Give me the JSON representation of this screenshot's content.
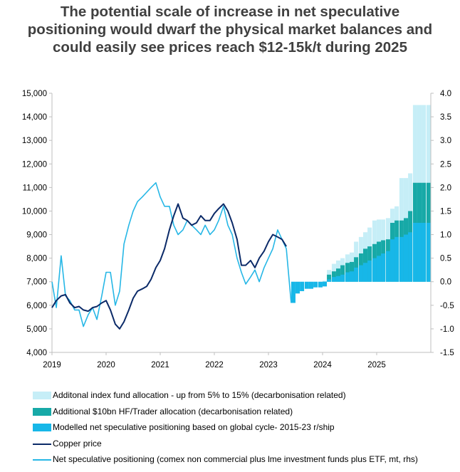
{
  "title_lines": [
    "The potential scale of increase in net speculative",
    "positioning would dwarf the physical market balances and",
    "could easily see prices reach $12-15k/t during 2025"
  ],
  "colors": {
    "index_fund": "#c6eef7",
    "hf_trader": "#17a9a7",
    "modelled": "#17b7e8",
    "copper_price": "#0b2a68",
    "net_spec": "#26b7e6",
    "axis": "#bfbfbf"
  },
  "chart_data": {
    "type": "line",
    "x_tick_labels": [
      "2019",
      "2020",
      "2021",
      "2022",
      "2023",
      "2024",
      "2025"
    ],
    "xlim": [
      2019.0,
      2026.0
    ],
    "y_left": {
      "ylim": [
        4000,
        15000
      ],
      "ticks": [
        4000,
        5000,
        6000,
        7000,
        8000,
        9000,
        10000,
        11000,
        12000,
        13000,
        14000,
        15000
      ],
      "tick_labels": [
        "4,000",
        "5,000",
        "6,000",
        "7,000",
        "8,000",
        "9,000",
        "10,000",
        "11,000",
        "12,000",
        "13,000",
        "14,000",
        "15,000"
      ]
    },
    "y_right": {
      "ylim": [
        -1.5,
        4.0
      ],
      "ticks": [
        -1.5,
        -1.0,
        -0.5,
        0.0,
        0.5,
        1.0,
        1.5,
        2.0,
        2.5,
        3.0,
        3.5,
        4.0
      ],
      "tick_labels": [
        "-1.5",
        "-1.0",
        "-0.5",
        "0.0",
        "0.5",
        "1.0",
        "1.5",
        "2.0",
        "2.5",
        "3.0",
        "3.5",
        "4.0"
      ]
    },
    "legend_placement": "bottom",
    "grid": false,
    "series": [
      {
        "name": "Additonal index fund allocation - up from 5% to 15% (decarbonisation related)",
        "kind": "bar",
        "axis": "right",
        "stack": "cumulative_top",
        "x": [
          2024.0,
          2024.08,
          2024.17,
          2024.25,
          2024.33,
          2024.42,
          2024.5,
          2024.58,
          2024.67,
          2024.75,
          2024.83,
          2024.92,
          2025.0,
          2025.08,
          2025.17,
          2025.25,
          2025.33,
          2025.42,
          2025.5,
          2025.58,
          2025.67,
          2025.75,
          2025.83,
          2025.92
        ],
        "values": [
          0.02,
          0.25,
          0.38,
          0.45,
          0.5,
          0.58,
          0.62,
          0.85,
          0.95,
          1.05,
          1.15,
          1.3,
          1.32,
          1.32,
          1.35,
          1.55,
          1.6,
          2.2,
          2.2,
          2.3,
          3.75,
          3.75,
          3.75,
          3.75
        ]
      },
      {
        "name": "Additional $10bn HF/Trader allocation (decarbonisation related)",
        "kind": "bar",
        "axis": "right",
        "stack": "cumulative_mid",
        "x": [
          2024.0,
          2024.08,
          2024.17,
          2024.25,
          2024.33,
          2024.42,
          2024.5,
          2024.58,
          2024.67,
          2024.75,
          2024.83,
          2024.92,
          2025.0,
          2025.08,
          2025.17,
          2025.25,
          2025.33,
          2025.42,
          2025.5,
          2025.58,
          2025.67,
          2025.75,
          2025.83,
          2025.92
        ],
        "values": [
          0.0,
          0.15,
          0.22,
          0.28,
          0.35,
          0.4,
          0.42,
          0.52,
          0.6,
          0.7,
          0.75,
          0.8,
          0.85,
          0.88,
          0.9,
          1.25,
          1.3,
          1.3,
          1.35,
          1.5,
          2.1,
          2.1,
          2.1,
          2.1
        ]
      },
      {
        "name": "Modelled net speculative positioning based on global cycle- 2015-23 r/ship",
        "kind": "bar",
        "axis": "right",
        "stack": "base",
        "x": [
          2023.42,
          2023.5,
          2023.58,
          2023.67,
          2023.75,
          2023.83,
          2023.92,
          2024.0,
          2024.08,
          2024.17,
          2024.25,
          2024.33,
          2024.42,
          2024.5,
          2024.58,
          2024.67,
          2024.75,
          2024.83,
          2024.92,
          2025.0,
          2025.08,
          2025.17,
          2025.25,
          2025.33,
          2025.42,
          2025.5,
          2025.58,
          2025.67,
          2025.75,
          2025.83,
          2025.92
        ],
        "values": [
          -0.45,
          -0.25,
          -0.2,
          -0.15,
          -0.15,
          -0.12,
          -0.12,
          -0.1,
          0.05,
          0.1,
          0.12,
          0.15,
          0.2,
          0.22,
          0.3,
          0.35,
          0.4,
          0.45,
          0.5,
          0.55,
          0.6,
          0.65,
          0.9,
          0.95,
          0.95,
          1.0,
          1.05,
          1.25,
          1.25,
          1.25,
          1.25
        ]
      },
      {
        "name": "Copper price",
        "kind": "line",
        "axis": "left",
        "x": [
          2019.0,
          2019.08,
          2019.17,
          2019.25,
          2019.33,
          2019.42,
          2019.5,
          2019.58,
          2019.67,
          2019.75,
          2019.83,
          2019.92,
          2020.0,
          2020.08,
          2020.17,
          2020.25,
          2020.33,
          2020.42,
          2020.5,
          2020.58,
          2020.67,
          2020.75,
          2020.83,
          2020.92,
          2021.0,
          2021.08,
          2021.17,
          2021.25,
          2021.33,
          2021.42,
          2021.5,
          2021.58,
          2021.67,
          2021.75,
          2021.83,
          2021.92,
          2022.0,
          2022.08,
          2022.17,
          2022.25,
          2022.33,
          2022.42,
          2022.5,
          2022.58,
          2022.67,
          2022.75,
          2022.83,
          2022.92,
          2023.0,
          2023.08,
          2023.17,
          2023.25,
          2023.33
        ],
        "values": [
          5900,
          6200,
          6400,
          6450,
          6100,
          5900,
          5950,
          5800,
          5750,
          5900,
          5950,
          6100,
          6200,
          5800,
          5200,
          5000,
          5300,
          5800,
          6300,
          6600,
          6700,
          6800,
          7100,
          7600,
          7900,
          8400,
          9200,
          9800,
          10300,
          9700,
          9600,
          9400,
          9500,
          9800,
          9600,
          9600,
          9900,
          10100,
          10300,
          10000,
          9500,
          8800,
          7700,
          7700,
          7900,
          7600,
          8000,
          8300,
          8700,
          9000,
          8900,
          8800,
          8500
        ]
      },
      {
        "name": "Net speculative positioning (comex non commercial plus lme investment funds plus ETF, mt, rhs)",
        "kind": "line",
        "axis": "right",
        "x": [
          2019.0,
          2019.08,
          2019.17,
          2019.25,
          2019.33,
          2019.42,
          2019.5,
          2019.58,
          2019.67,
          2019.75,
          2019.83,
          2019.92,
          2020.0,
          2020.08,
          2020.17,
          2020.25,
          2020.33,
          2020.42,
          2020.5,
          2020.58,
          2020.67,
          2020.75,
          2020.83,
          2020.92,
          2021.0,
          2021.08,
          2021.17,
          2021.25,
          2021.33,
          2021.42,
          2021.5,
          2021.58,
          2021.67,
          2021.75,
          2021.83,
          2021.92,
          2022.0,
          2022.08,
          2022.17,
          2022.25,
          2022.33,
          2022.42,
          2022.5,
          2022.58,
          2022.67,
          2022.75,
          2022.83,
          2022.92,
          2023.0,
          2023.08,
          2023.17,
          2023.25,
          2023.33,
          2023.42
        ],
        "values": [
          0.0,
          -0.55,
          0.55,
          -0.3,
          -0.4,
          -0.6,
          -0.6,
          -0.95,
          -0.7,
          -0.55,
          -0.8,
          -0.3,
          0.2,
          0.2,
          -0.5,
          -0.2,
          0.8,
          1.2,
          1.5,
          1.7,
          1.8,
          1.9,
          2.0,
          2.1,
          1.8,
          1.6,
          1.6,
          1.2,
          1.0,
          1.1,
          1.3,
          1.2,
          1.1,
          1.0,
          1.2,
          1.0,
          1.1,
          1.3,
          1.6,
          1.2,
          1.0,
          0.5,
          0.2,
          -0.05,
          0.1,
          0.25,
          0.0,
          0.3,
          0.5,
          0.7,
          1.1,
          0.9,
          0.7,
          -0.45
        ]
      }
    ]
  },
  "legend": [
    {
      "label": "Additonal index fund allocation - up from 5% to 15% (decarbonisation related)",
      "kind": "box",
      "color": "#c6eef7"
    },
    {
      "label": "Additional $10bn HF/Trader allocation (decarbonisation related)",
      "kind": "box",
      "color": "#17a9a7"
    },
    {
      "label": "Modelled net speculative positioning based on global cycle- 2015-23 r/ship",
      "kind": "box",
      "color": "#17b7e8"
    },
    {
      "label": "Copper price",
      "kind": "line",
      "color": "#0b2a68"
    },
    {
      "label": "Net speculative positioning (comex non commercial plus lme investment funds plus ETF, mt, rhs)",
      "kind": "line",
      "color": "#26b7e6"
    }
  ]
}
